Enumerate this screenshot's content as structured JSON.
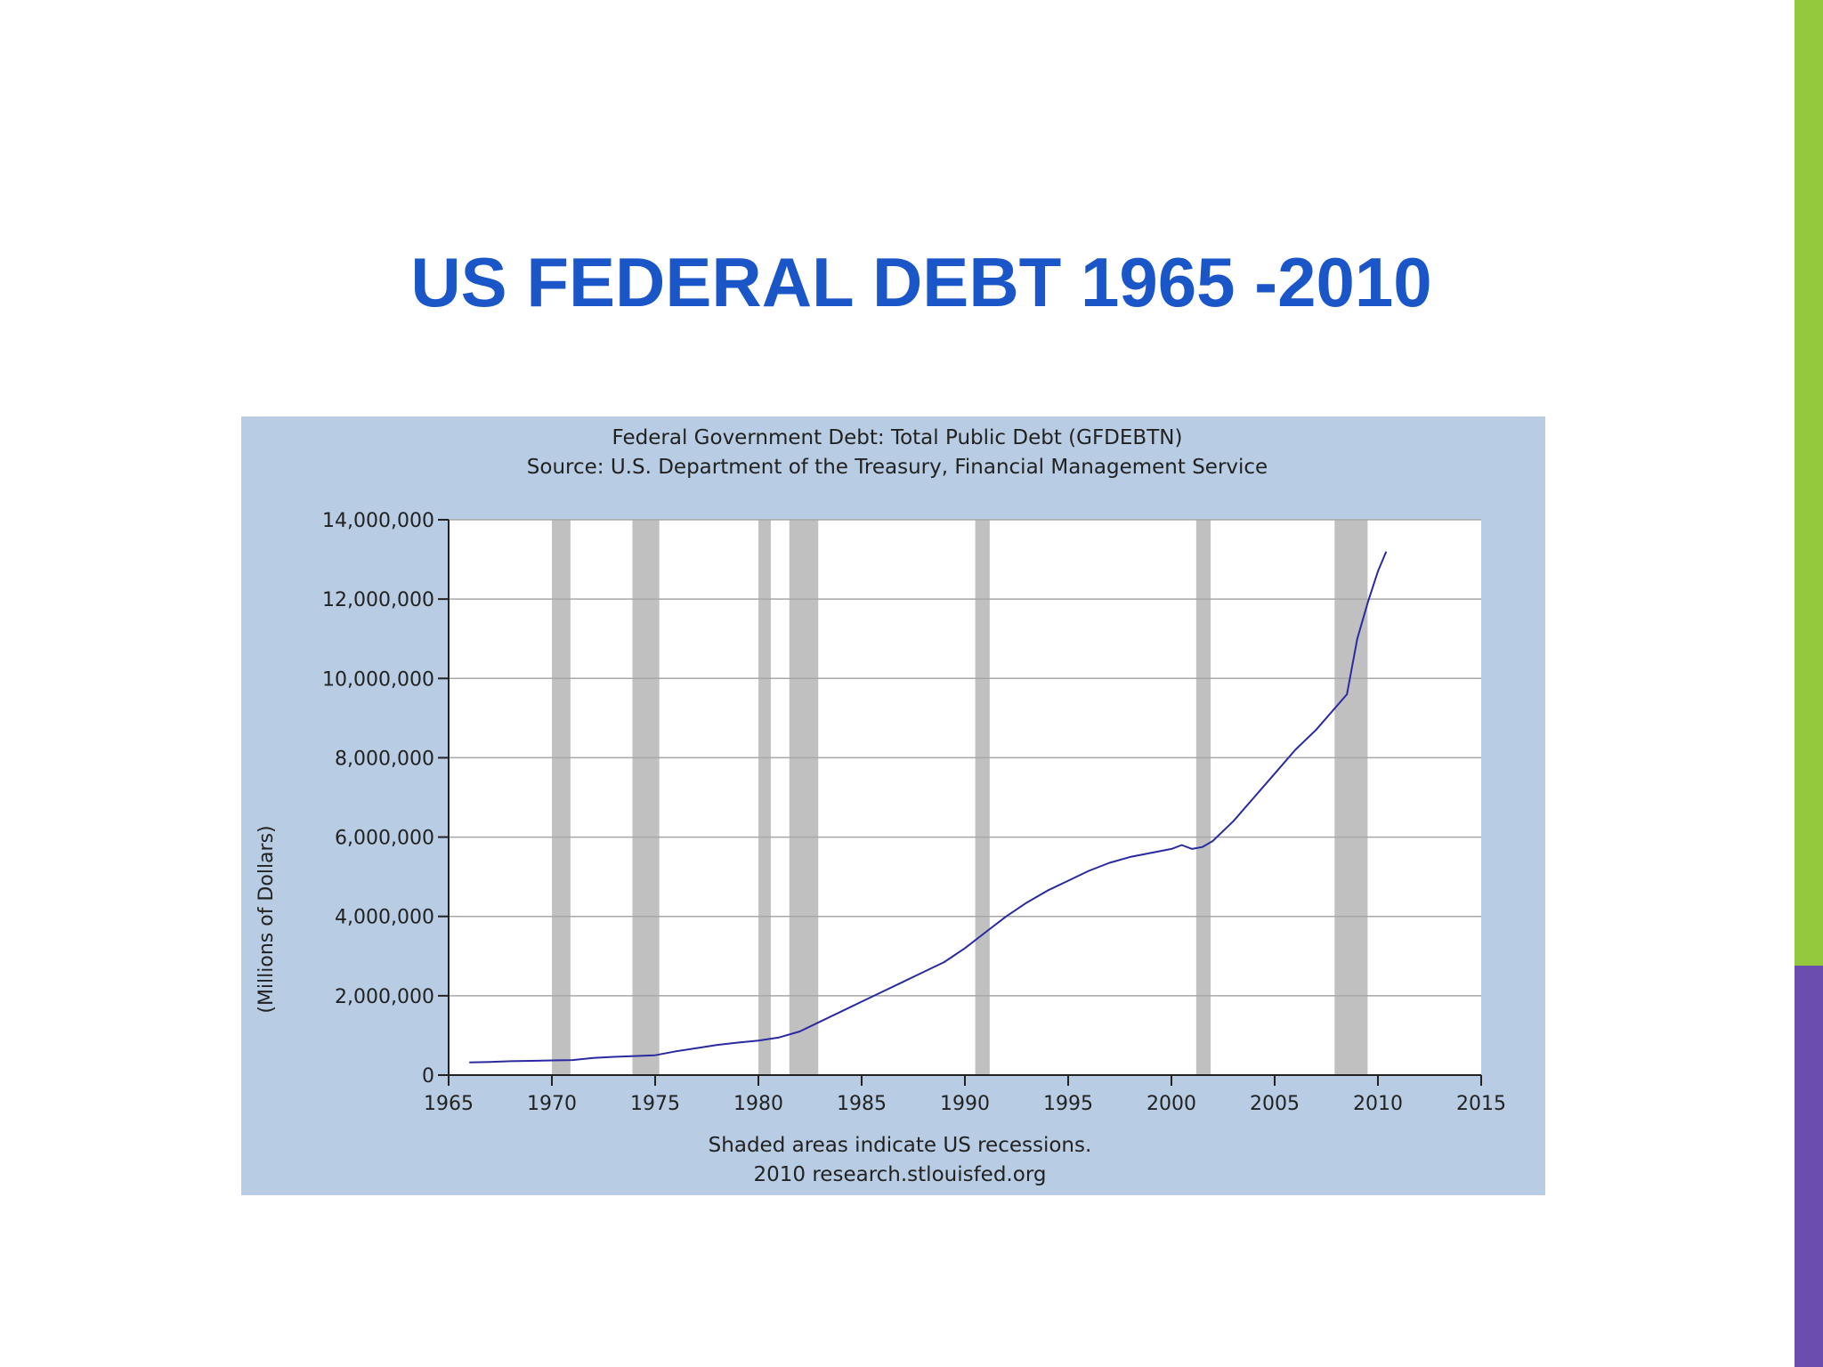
{
  "slide": {
    "title": "US FEDERAL DEBT 1965 -2010"
  },
  "colors": {
    "title": "#1a56c8",
    "accent_green": "#95c93d",
    "accent_purple": "#6a4daf",
    "panel_background": "#b8cde3",
    "plot_background": "#ffffff",
    "recession_shade": "#c0c0c0",
    "series_line": "#2a2aa0",
    "grid": "#a8a8a8"
  },
  "chart_data": {
    "type": "line",
    "title": "Federal Government Debt: Total Public Debt (GFDEBTN)",
    "subtitle": "Source: U.S. Department of the Treasury, Financial Management Service",
    "xlabel": "",
    "ylabel": "(Millions of Dollars)",
    "xlim": [
      1965,
      2015
    ],
    "ylim": [
      0,
      14000000
    ],
    "x_ticks": [
      "1965",
      "1970",
      "1975",
      "1980",
      "1985",
      "1990",
      "1995",
      "2000",
      "2005",
      "2010",
      "2015"
    ],
    "y_ticks": [
      "0",
      "2,000,000",
      "4,000,000",
      "6,000,000",
      "8,000,000",
      "10,000,000",
      "12,000,000",
      "14,000,000"
    ],
    "grid": true,
    "legend": "none",
    "footnotes": [
      "Shaded areas indicate US recessions.",
      "2010 research.stlouisfed.org"
    ],
    "recessions": [
      [
        1970.0,
        1970.9
      ],
      [
        1973.9,
        1975.2
      ],
      [
        1980.0,
        1980.6
      ],
      [
        1981.5,
        1982.9
      ],
      [
        1990.5,
        1991.2
      ],
      [
        2001.2,
        2001.9
      ],
      [
        2007.9,
        2009.5
      ]
    ],
    "series": [
      {
        "x": [
          1966,
          1967,
          1968,
          1969,
          1970,
          1971,
          1972,
          1973,
          1974,
          1975,
          1976,
          1977,
          1978,
          1979,
          1980,
          1981,
          1982,
          1983,
          1984,
          1985,
          1986,
          1987,
          1988,
          1989,
          1990,
          1991,
          1992,
          1993,
          1994,
          1995,
          1996,
          1997,
          1998,
          1999,
          2000,
          2000.5,
          2001,
          2001.5,
          2002,
          2003,
          2004,
          2005,
          2006,
          2007,
          2008,
          2008.5,
          2009,
          2009.5,
          2010,
          2010.4
        ],
        "y": [
          320000,
          330000,
          350000,
          360000,
          370000,
          380000,
          430000,
          460000,
          480000,
          500000,
          600000,
          680000,
          760000,
          820000,
          870000,
          950000,
          1100000,
          1350000,
          1600000,
          1850000,
          2100000,
          2350000,
          2600000,
          2850000,
          3200000,
          3600000,
          4000000,
          4350000,
          4650000,
          4900000,
          5150000,
          5350000,
          5500000,
          5600000,
          5700000,
          5800000,
          5700000,
          5750000,
          5900000,
          6400000,
          7000000,
          7600000,
          8200000,
          8700000,
          9300000,
          9600000,
          11000000,
          11900000,
          12700000,
          13200000
        ]
      }
    ]
  }
}
